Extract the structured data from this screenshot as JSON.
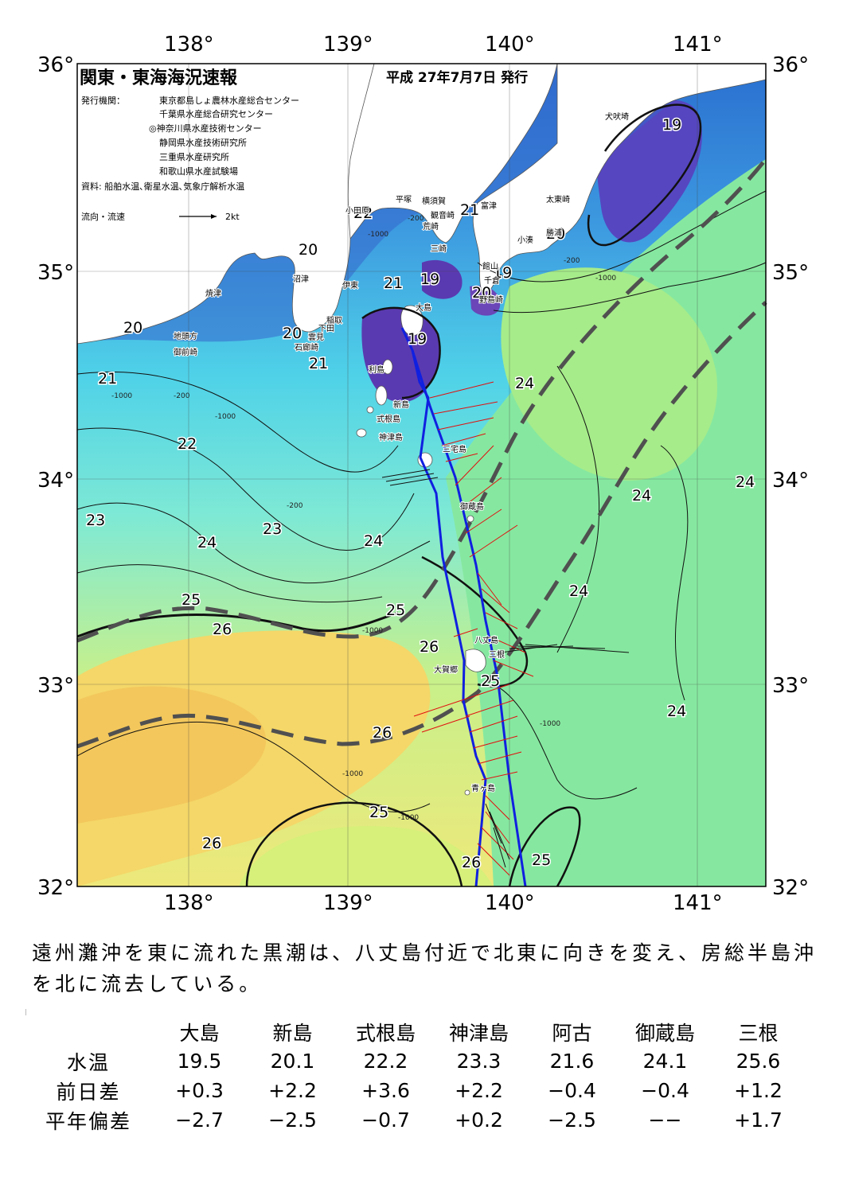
{
  "header": {
    "title": "関東・東海海況速報",
    "date": "平成 27年7月7日 発行",
    "issuer_label": "発行機関：",
    "issuers": [
      "東京都島しょ農林水産総合センター",
      "千葉県水産総合研究センター",
      "◎神奈川県水産技術センター",
      "静岡県水産技術研究所",
      "三重県水産研究所",
      "和歌山県水産試験場"
    ],
    "source": "資料: 船舶水温､衛星水温､気象庁解析水温",
    "current_legend": "流向・流速",
    "current_scale": "2kt"
  },
  "axes": {
    "lon_labels": [
      "138°",
      "139°",
      "140°",
      "141°"
    ],
    "lat_labels": [
      "36°",
      "35°",
      "34°",
      "33°",
      "32°"
    ],
    "lon_range": [
      137.5,
      141.5
    ],
    "lat_range": [
      32.0,
      36.0
    ]
  },
  "isotherm_labels": [
    "19",
    "19",
    "19",
    "19",
    "20",
    "20",
    "20",
    "20",
    "20",
    "21",
    "21",
    "21",
    "21",
    "22",
    "22",
    "23",
    "23",
    "24",
    "24",
    "24",
    "24",
    "24",
    "24",
    "24",
    "25",
    "25",
    "25",
    "25",
    "25",
    "26",
    "26",
    "26",
    "26",
    "26"
  ],
  "depth_labels": [
    "-200",
    "-1000",
    "-1000",
    "-200",
    "-1000",
    "-200",
    "-1000",
    "-200",
    "-1000",
    "-1000",
    "-1000",
    "-1000"
  ],
  "place_names": [
    "犬吠埼",
    "太東崎",
    "勝浦",
    "小湊",
    "富津",
    "横須賀",
    "観音崎",
    "平塚",
    "小田原",
    "荒崎",
    "三崎",
    "館山",
    "千倉",
    "野島崎",
    "沼津",
    "伊東",
    "焼津",
    "稲取",
    "下田",
    "雲見",
    "石廊崎",
    "地頭方",
    "御前崎",
    "大島",
    "利島",
    "新島",
    "式根島",
    "神津島",
    "三宅島",
    "御蔵島",
    "八丈島",
    "三根",
    "大賀郷",
    "青ヶ島"
  ],
  "summary": "遠州灘沖を東に流れた黒潮は、八丈島付近で北東に向きを変え、房総半島沖を北に流去している。",
  "table": {
    "columns": [
      "大島",
      "新島",
      "式根島",
      "神津島",
      "阿古",
      "御蔵島",
      "三根"
    ],
    "rows": [
      {
        "label": "水温",
        "values": [
          "19.5",
          "20.1",
          "22.2",
          "23.3",
          "21.6",
          "24.1",
          "25.6"
        ]
      },
      {
        "label": "前日差",
        "values": [
          "+0.3",
          "+2.2",
          "+3.6",
          "+2.2",
          "−0.4",
          "−0.4",
          "+1.2"
        ]
      },
      {
        "label": "平年偏差",
        "values": [
          "−2.7",
          "−2.5",
          "−0.7",
          "+0.2",
          "−2.5",
          "−−",
          "+1.7"
        ]
      }
    ]
  }
}
